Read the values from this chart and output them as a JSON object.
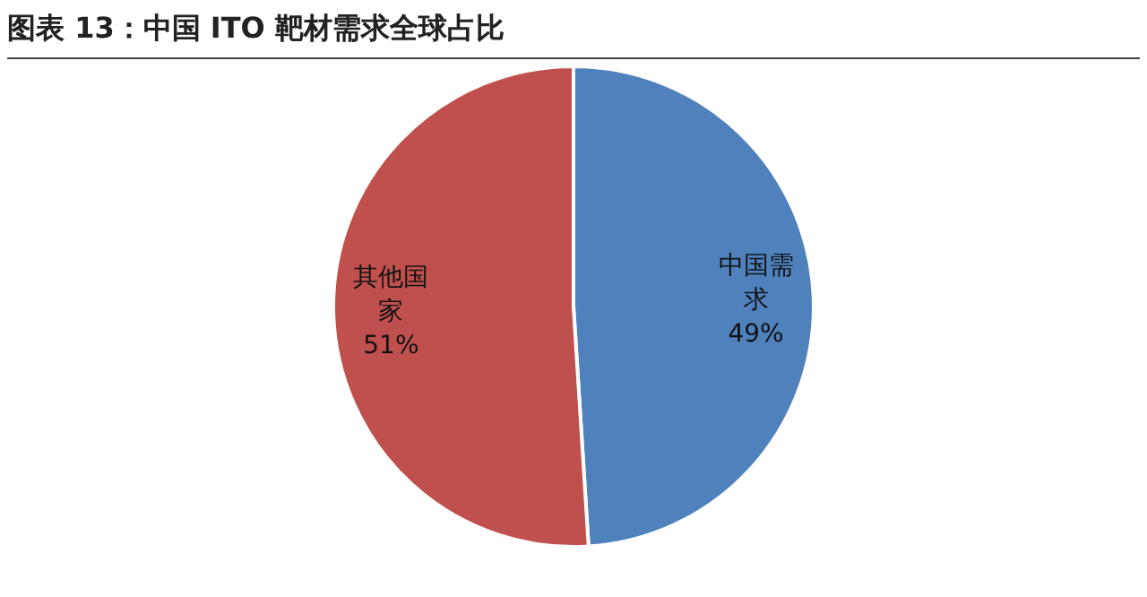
{
  "chart_data": {
    "type": "pie",
    "title": "图表 13：中国 ITO 靶材需求全球占比",
    "categories": [
      "中国需求",
      "其他国家"
    ],
    "values": [
      49,
      51
    ],
    "colors": [
      "#4f81bd",
      "#c0504d"
    ],
    "value_labels": [
      "49%",
      "51%"
    ],
    "legend": false
  }
}
